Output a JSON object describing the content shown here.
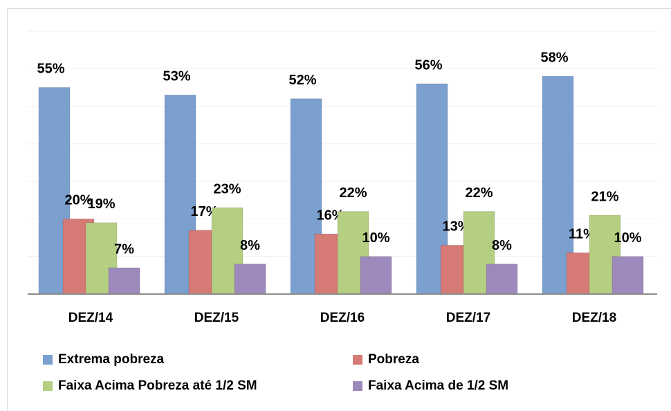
{
  "chart_data": {
    "type": "bar",
    "categories": [
      "DEZ/14",
      "DEZ/15",
      "DEZ/16",
      "DEZ/17",
      "DEZ/18"
    ],
    "series": [
      {
        "name": "Extrema pobreza",
        "color": "#7ba0d0",
        "values": [
          55,
          53,
          52,
          56,
          58
        ],
        "value_labels": [
          "55%",
          "53%",
          "52%",
          "56%",
          "58%"
        ]
      },
      {
        "name": "Pobreza",
        "color": "#d67a75",
        "values": [
          20,
          17,
          16,
          13,
          11
        ],
        "value_labels": [
          "20%",
          "17%",
          "16%",
          "13%",
          "11%"
        ]
      },
      {
        "name": "Faixa Acima Pobreza até 1/2 SM",
        "color": "#b5cf82",
        "values": [
          19,
          23,
          22,
          22,
          21
        ],
        "value_labels": [
          "19%",
          "23%",
          "22%",
          "22%",
          "21%"
        ]
      },
      {
        "name": "Faixa Acima de 1/2 SM",
        "color": "#9d89bb",
        "values": [
          7,
          8,
          10,
          8,
          10
        ],
        "value_labels": [
          "7%",
          "8%",
          "10%",
          "8%",
          "10%"
        ]
      }
    ],
    "ylim": [
      0,
      70
    ],
    "yticks": [
      0,
      10,
      20,
      30,
      40,
      50,
      60,
      70
    ],
    "grid": true,
    "legend": "bottom"
  }
}
